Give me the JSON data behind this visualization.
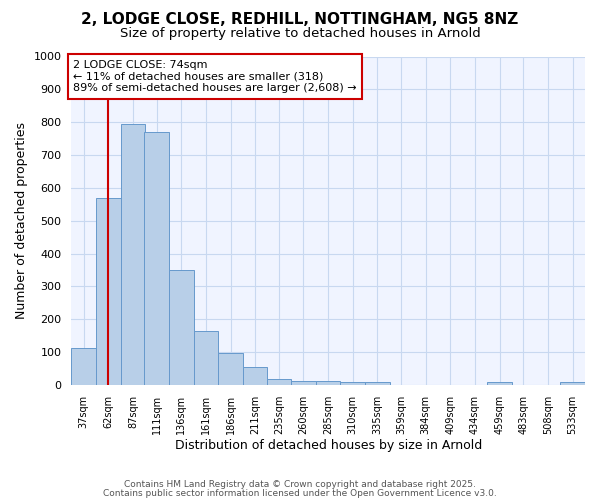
{
  "title_line1": "2, LODGE CLOSE, REDHILL, NOTTINGHAM, NG5 8NZ",
  "title_line2": "Size of property relative to detached houses in Arnold",
  "xlabel": "Distribution of detached houses by size in Arnold",
  "ylabel": "Number of detached properties",
  "bg_color": "#ffffff",
  "plot_bg_color": "#f0f4ff",
  "bar_color": "#b8cfe8",
  "bar_edge_color": "#6699cc",
  "vline_x": 74,
  "vline_color": "#cc0000",
  "annotation_text": "2 LODGE CLOSE: 74sqm\n← 11% of detached houses are smaller (318)\n89% of semi-detached houses are larger (2,608) →",
  "annotation_box_color": "#cc0000",
  "annotation_box_bg": "#ffffff",
  "bins_left": [
    37,
    62,
    87,
    111,
    136,
    161,
    186,
    211,
    235,
    260,
    285,
    310,
    335,
    359,
    384,
    409,
    434,
    459,
    483,
    508,
    533
  ],
  "bin_width": 25,
  "heights": [
    112,
    568,
    793,
    770,
    350,
    165,
    97,
    53,
    18,
    12,
    12,
    8,
    8,
    0,
    0,
    0,
    0,
    8,
    0,
    0,
    8
  ],
  "ylim": [
    0,
    1000
  ],
  "yticks": [
    0,
    100,
    200,
    300,
    400,
    500,
    600,
    700,
    800,
    900,
    1000
  ],
  "grid_color": "#c8d8f0",
  "footer_line1": "Contains HM Land Registry data © Crown copyright and database right 2025.",
  "footer_line2": "Contains public sector information licensed under the Open Government Licence v3.0."
}
